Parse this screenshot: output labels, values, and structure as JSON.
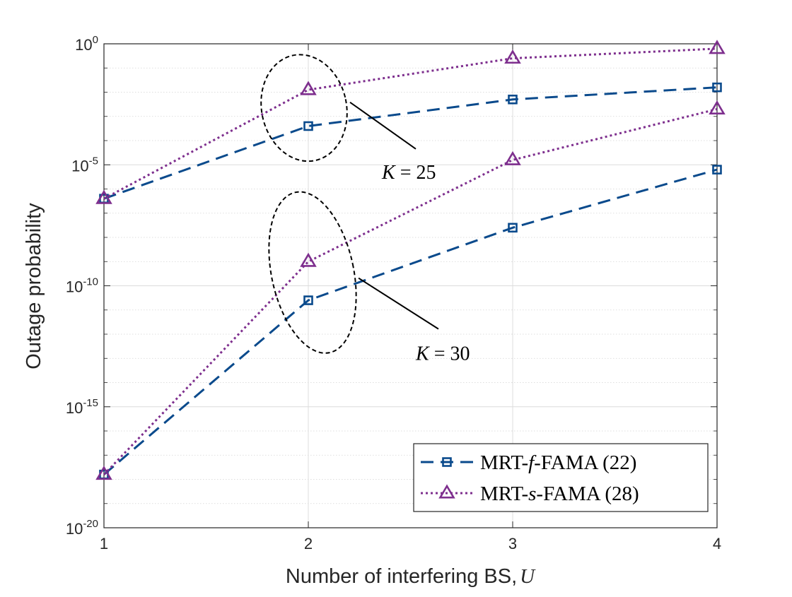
{
  "chart_data": {
    "type": "line",
    "title": "",
    "xlabel": "Number of interfering BS,",
    "xlabel_symbol": "U",
    "ylabel": "Outage probability",
    "x": [
      1,
      2,
      3,
      4
    ],
    "xlim": [
      1,
      4
    ],
    "xticks": [
      "1",
      "2",
      "3",
      "4"
    ],
    "yscale": "log",
    "ylim_exponent": [
      -20,
      0
    ],
    "yticks": [
      {
        "base": "10",
        "exp": "0",
        "value_exp": 0
      },
      {
        "base": "10",
        "exp": "-5",
        "value_exp": -5
      },
      {
        "base": "10",
        "exp": "-10",
        "value_exp": -10
      },
      {
        "base": "10",
        "exp": "-15",
        "value_exp": -15
      },
      {
        "base": "10",
        "exp": "-20",
        "value_exp": -20
      }
    ],
    "grid": true,
    "legend_position": "bottom-right",
    "series": [
      {
        "name": "MRT-f-FAMA (22) K=25",
        "group": "K=25",
        "scheme": "f",
        "color": "#0a4a8c",
        "marker": "square",
        "linestyle": "dashed",
        "log10_values": [
          -6.4,
          -3.4,
          -2.3,
          -1.8
        ]
      },
      {
        "name": "MRT-s-FAMA (28) K=25",
        "group": "K=25",
        "scheme": "s",
        "color": "#7e2f8e",
        "marker": "triangle",
        "linestyle": "dotted",
        "log10_values": [
          -6.4,
          -1.9,
          -0.6,
          -0.2
        ]
      },
      {
        "name": "MRT-f-FAMA (22) K=30",
        "group": "K=30",
        "scheme": "f",
        "color": "#0a4a8c",
        "marker": "square",
        "linestyle": "dashed",
        "log10_values": [
          -17.8,
          -10.6,
          -7.6,
          -5.2
        ]
      },
      {
        "name": "MRT-s-FAMA (28) K=30",
        "group": "K=30",
        "scheme": "s",
        "color": "#7e2f8e",
        "marker": "triangle",
        "linestyle": "dotted",
        "log10_values": [
          -17.8,
          -9.0,
          -4.8,
          -2.7
        ]
      }
    ],
    "legend": [
      {
        "pre": "MRT-",
        "sym": "f",
        "post": "-FAMA (22)",
        "marker": "square",
        "color": "#0a4a8c",
        "linestyle": "dashed"
      },
      {
        "pre": "MRT-",
        "sym": "s",
        "post": "-FAMA (28)",
        "marker": "triangle",
        "color": "#7e2f8e",
        "linestyle": "dotted"
      }
    ],
    "annotations": [
      {
        "text_sym": "K",
        "text_rest": " = 25",
        "group": "K=25"
      },
      {
        "text_sym": "K",
        "text_rest": " = 30",
        "group": "K=30"
      }
    ]
  }
}
